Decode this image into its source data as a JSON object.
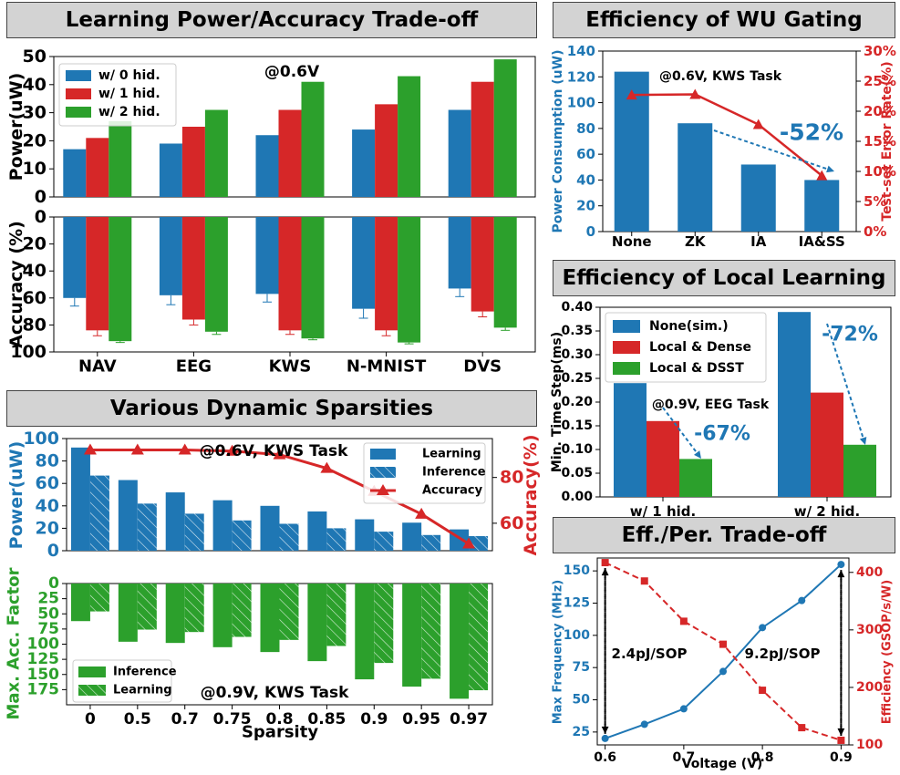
{
  "colors": {
    "blue": "#1f77b4",
    "red": "#d62728",
    "green": "#2ca02c"
  },
  "headers": {
    "tradeoff": "Learning Power/Accuracy Trade-off",
    "gating": "Efficiency of WU Gating",
    "local": "Efficiency of Local Learning",
    "sparsity": "Various Dynamic Sparsities",
    "effper": "Eff./Per. Trade-off"
  },
  "chart_data": [
    {
      "id": "learning-power",
      "type": "bar",
      "title": "Learning Power/Accuracy Trade-off",
      "annotation": "@0.6V",
      "ylabel": "Power(uW)",
      "ylim": [
        0,
        50
      ],
      "yticks": [
        0,
        10,
        20,
        30,
        40,
        50
      ],
      "categories": [
        "NAV",
        "EEG",
        "KWS",
        "N-MNIST",
        "DVS"
      ],
      "series": [
        {
          "name": "w/ 0 hid.",
          "values": [
            17,
            19,
            22,
            24,
            31
          ]
        },
        {
          "name": "w/ 1 hid.",
          "values": [
            21,
            25,
            31,
            33,
            41
          ]
        },
        {
          "name": "w/ 2 hid.",
          "values": [
            27,
            31,
            41,
            43,
            49
          ]
        }
      ]
    },
    {
      "id": "learning-accuracy",
      "type": "bar",
      "ylabel": "Accuracy (%)",
      "ylim": [
        0,
        100
      ],
      "yticks": [
        0,
        20,
        40,
        60,
        80,
        100
      ],
      "inverted": true,
      "categories": [
        "NAV",
        "EEG",
        "KWS",
        "N-MNIST",
        "DVS"
      ],
      "series": [
        {
          "name": "w/ 0 hid.",
          "values": [
            60,
            58,
            57,
            68,
            53
          ],
          "err": [
            6,
            7,
            6,
            7,
            6
          ]
        },
        {
          "name": "w/ 1 hid.",
          "values": [
            84,
            76,
            84,
            84,
            70
          ],
          "err": [
            4,
            4,
            3,
            4,
            4
          ]
        },
        {
          "name": "w/ 2 hid.",
          "values": [
            92,
            85,
            90,
            93,
            82
          ],
          "err": [
            1,
            2,
            1,
            1,
            2
          ]
        }
      ]
    },
    {
      "id": "wu-gating",
      "type": "bar",
      "title": "Efficiency of WU Gating",
      "annotation": "@0.6V, KWS Task",
      "reduction": "-52%",
      "ylabel": "Power Consumption (uW)",
      "y2label": "Test-set Error Rate(%)",
      "ylim": [
        0,
        140
      ],
      "yticks": [
        0,
        20,
        40,
        60,
        80,
        100,
        120,
        140
      ],
      "y2lim": [
        0,
        30
      ],
      "y2ticks": [
        "0%",
        "5%",
        "10%",
        "15%",
        "20%",
        "25%",
        "30%"
      ],
      "categories": [
        "None",
        "ZK",
        "IA",
        "IA&SS"
      ],
      "power": [
        124,
        84,
        52,
        40
      ],
      "error_rate": [
        22.7,
        22.8,
        17.8,
        9.3
      ]
    },
    {
      "id": "local-learning",
      "type": "bar",
      "title": "Efficiency of Local Learning",
      "annotation": "@0.9V, EEG Task",
      "ylabel": "Min. Time Step(ms)",
      "ylim": [
        0,
        0.4
      ],
      "yticks": [
        "0.00",
        "0.05",
        "0.10",
        "0.15",
        "0.20",
        "0.25",
        "0.30",
        "0.35",
        "0.40"
      ],
      "categories": [
        "w/ 1 hid.",
        "w/ 2 hid."
      ],
      "series": [
        {
          "name": "None(sim.)",
          "values": [
            0.24,
            0.39
          ]
        },
        {
          "name": "Local & Dense",
          "values": [
            0.16,
            0.22
          ]
        },
        {
          "name": "Local & DSST",
          "values": [
            0.08,
            0.11
          ]
        }
      ],
      "reductions": [
        "-67%",
        "-72%"
      ]
    },
    {
      "id": "sparsity-power",
      "type": "bar",
      "title": "Various Dynamic Sparsities",
      "annotation": "@0.6V, KWS Task",
      "ylabel": "Power(uW)",
      "y2label": "Accuracy(%)",
      "ylim": [
        0,
        100
      ],
      "yticks": [
        0,
        20,
        40,
        60,
        80,
        100
      ],
      "y2lim": [
        48,
        97
      ],
      "y2ticks": [
        60,
        80
      ],
      "categories": [
        "0",
        "0.5",
        "0.7",
        "0.75",
        "0.8",
        "0.85",
        "0.9",
        "0.95",
        "0.97"
      ],
      "series": [
        {
          "name": "Learning",
          "values": [
            92,
            63,
            52,
            45,
            40,
            35,
            28,
            25,
            19
          ]
        },
        {
          "name": "Inference",
          "values": [
            67,
            42,
            33,
            27,
            24,
            20,
            17,
            14,
            13
          ]
        },
        {
          "name": "Accuracy",
          "values": [
            92,
            92,
            92,
            91.5,
            90,
            84,
            74,
            64,
            51
          ]
        }
      ]
    },
    {
      "id": "sparsity-acc-factor",
      "type": "bar",
      "annotation": "@0.9V, KWS Task",
      "xlabel": "Sparsity",
      "ylabel": "Max. Acc. Factor",
      "ylim": [
        0,
        200
      ],
      "yticks": [
        0,
        25,
        50,
        75,
        100,
        125,
        150,
        175
      ],
      "inverted": true,
      "categories": [
        "0",
        "0.5",
        "0.7",
        "0.75",
        "0.8",
        "0.85",
        "0.9",
        "0.95",
        "0.97"
      ],
      "series": [
        {
          "name": "Inference",
          "values": [
            62,
            96,
            98,
            105,
            113,
            128,
            158,
            170,
            190
          ]
        },
        {
          "name": "Learning",
          "values": [
            46,
            76,
            80,
            88,
            93,
            103,
            131,
            157,
            176
          ]
        }
      ]
    },
    {
      "id": "eff-per",
      "type": "line",
      "title": "Eff./Per. Trade-off",
      "xlabel": "Voltage (V)",
      "ylabel": "Max Frequency (MHz)",
      "y2label": "Efficiency (GSOP/s/W)",
      "x": [
        0.6,
        0.65,
        0.7,
        0.75,
        0.8,
        0.85,
        0.9
      ],
      "xticks": [
        "0.6",
        "0.7",
        "0.8",
        "0.9"
      ],
      "xlim": [
        0.59,
        0.91
      ],
      "ylim": [
        15,
        160
      ],
      "yticks": [
        25,
        50,
        75,
        100,
        125,
        150
      ],
      "y2lim": [
        100,
        425
      ],
      "y2ticks": [
        100,
        200,
        300,
        400
      ],
      "frequency": [
        20,
        31,
        43,
        72,
        106,
        127,
        155
      ],
      "efficiency": [
        417,
        385,
        315,
        275,
        195,
        130,
        108
      ],
      "annotations": [
        "2.4pJ/SOP",
        "9.2pJ/SOP"
      ]
    }
  ]
}
